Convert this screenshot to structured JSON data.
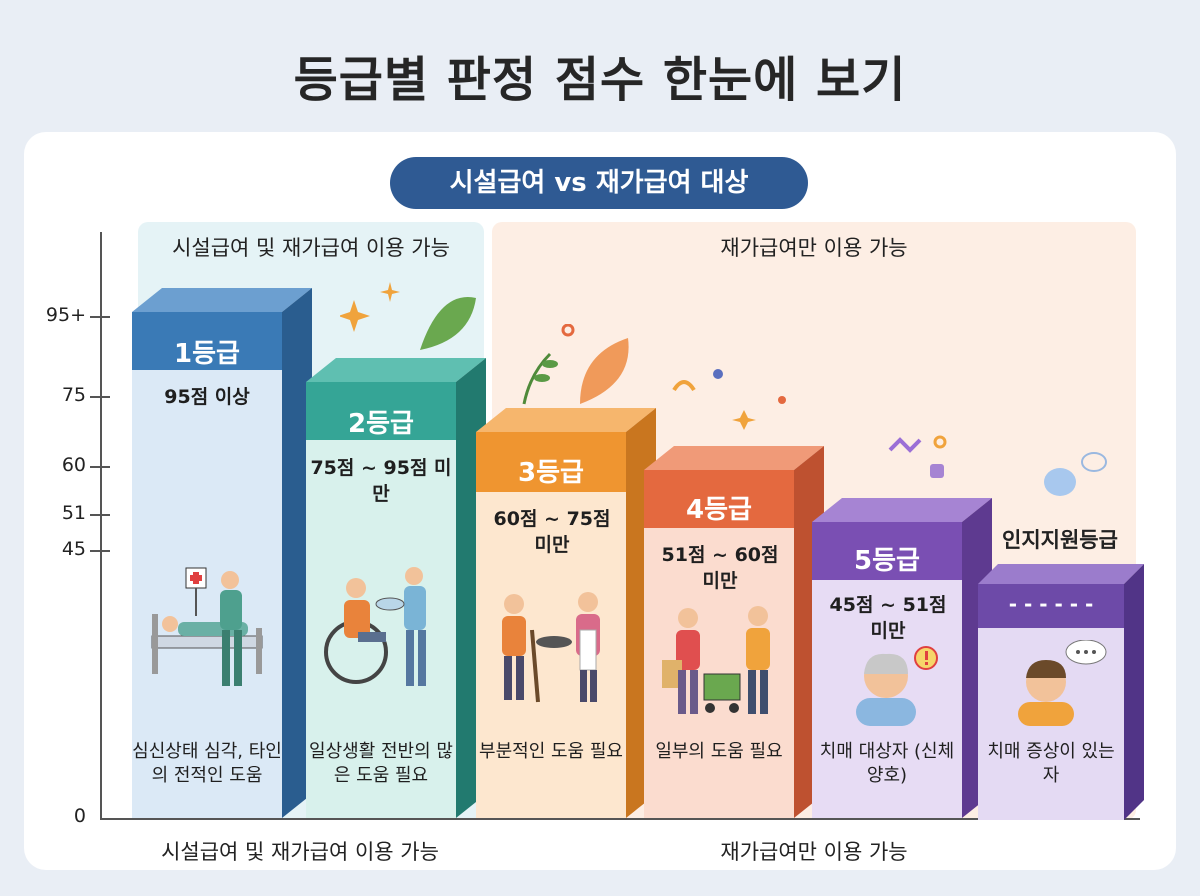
{
  "title": "등급별 판정 점수 한눈에 보기",
  "subtitle": "시설급여 vs 재가급여 대상",
  "zones": {
    "left_label": "시설급여 및 재가급여 이용 가능",
    "right_label": "재가급여만 이용 가능"
  },
  "bottom": {
    "left_label": "시설급여 및 재가급여 이용 가능",
    "right_label": "재가급여만 이용 가능"
  },
  "y_ticks": [
    "95+",
    "75",
    "60",
    "51",
    "45",
    "0"
  ],
  "chart_data": {
    "type": "bar",
    "title": "등급별 판정 점수 한눈에 보기",
    "categories": [
      "1등급",
      "2등급",
      "3등급",
      "4등급",
      "5등급",
      "인지지원등급"
    ],
    "values": [
      95,
      75,
      60,
      51,
      45,
      0
    ],
    "y_ticks": [
      "95+",
      "75",
      "60",
      "51",
      "45",
      "0"
    ],
    "grid": false
  },
  "grades": [
    {
      "label": "1등급",
      "range": "95점 이상",
      "desc": "심신상태 심각, 타인의 전적인 도움",
      "color": "#3a7ab6",
      "side": "#2a5d8f",
      "top": "#6c9fd0",
      "band": "#3a7ab6",
      "face": "#dbe9f6",
      "icon": "hospital-bed-caregiver-icon"
    },
    {
      "label": "2등급",
      "range": "75점 ~ 95점 미만",
      "desc": "일상생활 전반의 많은 도움 필요",
      "color": "#2f9c8e",
      "side": "#227a6f",
      "top": "#5fbfb1",
      "band": "#35a596",
      "face": "#d8f1ec",
      "icon": "wheelchair-caregiver-icon"
    },
    {
      "label": "3등급",
      "range": "60점 ~ 75점 미만",
      "desc": "부분적인 도움 필요",
      "color": "#ef9530",
      "side": "#c9761f",
      "top": "#f6b66d",
      "band": "#ef9530",
      "face": "#fde7cf",
      "icon": "cane-cooking-icon"
    },
    {
      "label": "4등급",
      "range": "51점 ~ 60점 미만",
      "desc": "일부의 도움 필요",
      "color": "#e4693f",
      "side": "#be5130",
      "top": "#f09a78",
      "band": "#e4693f",
      "face": "#fbdccf",
      "icon": "shopping-help-icon"
    },
    {
      "label": "5등급",
      "range": "45점 ~ 51점 미만",
      "desc": "치매 대상자 (신체 양호)",
      "color": "#7a4fb3",
      "side": "#5e3a90",
      "top": "#a684d3",
      "band": "#7a4fb3",
      "face": "#e7dcf4",
      "icon": "dementia-elder-icon"
    },
    {
      "label": "인지지원등급",
      "range": "- - - - - -",
      "desc": "치매 증상이 있는 자",
      "color": "#6d4aa8",
      "side": "#513487",
      "top": "#9b7ccc",
      "band": "#6d4aa8",
      "face": "#e4daf3",
      "icon": "thinking-elder-icon"
    }
  ]
}
